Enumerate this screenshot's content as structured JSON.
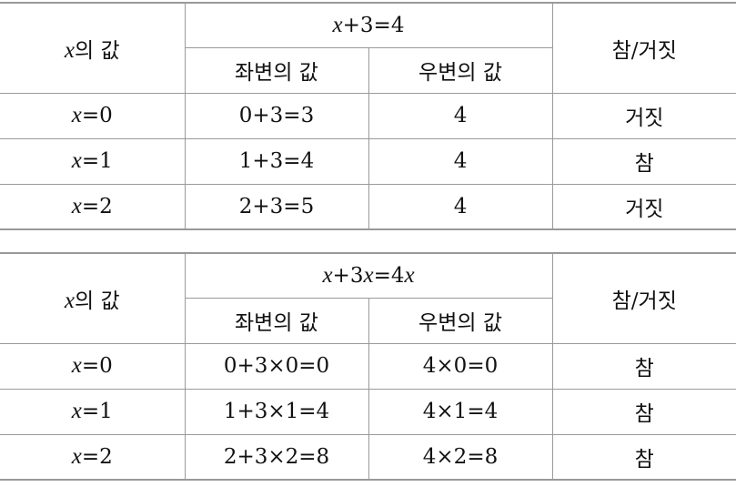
{
  "tables": [
    {
      "col_x": "x의 값",
      "equation": "x+3=4",
      "col_left": "좌변의 값",
      "col_right": "우변의 값",
      "col_result": "참/거짓",
      "rows": [
        {
          "x": "x=0",
          "left": "0+3=3",
          "right": "4",
          "result": "거짓"
        },
        {
          "x": "x=1",
          "left": "1+3=4",
          "right": "4",
          "result": "참"
        },
        {
          "x": "x=2",
          "left": "2+3=5",
          "right": "4",
          "result": "거짓"
        }
      ]
    },
    {
      "col_x": "x의 값",
      "equation": "x+3x=4x",
      "col_left": "좌변의 값",
      "col_right": "우변의 값",
      "col_result": "참/거짓",
      "rows": [
        {
          "x": "x=0",
          "left": "0+3×0=0",
          "right": "4×0=0",
          "result": "참"
        },
        {
          "x": "x=1",
          "left": "1+3×1=4",
          "right": "4×1=4",
          "result": "참"
        },
        {
          "x": "x=2",
          "left": "2+3×2=8",
          "right": "4×2=8",
          "result": "참"
        }
      ]
    }
  ]
}
